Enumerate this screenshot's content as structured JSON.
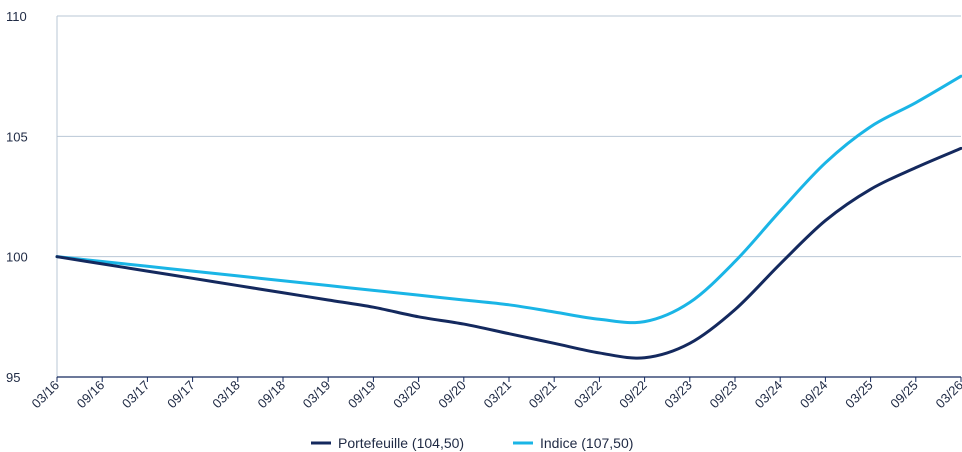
{
  "chart_data": {
    "type": "line",
    "x": [
      "03/16",
      "09/16",
      "03/17",
      "09/17",
      "03/18",
      "09/18",
      "03/19",
      "09/19",
      "03/20",
      "09/20",
      "03/21",
      "09/21",
      "03/22",
      "09/22",
      "03/23",
      "09/23",
      "03/24",
      "09/24",
      "03/25",
      "09/25",
      "03/26"
    ],
    "ylim": [
      95,
      110
    ],
    "yticks": [
      95,
      100,
      105,
      110
    ],
    "grid": "horizontal",
    "legend_position": "bottom",
    "series": [
      {
        "name": "Portefeuille (104,50)",
        "color": "#14295e",
        "values": [
          100.0,
          99.7,
          99.4,
          99.1,
          98.8,
          98.5,
          98.2,
          97.9,
          97.5,
          97.2,
          96.8,
          96.4,
          96.0,
          95.8,
          96.4,
          97.8,
          99.7,
          101.5,
          102.8,
          103.7,
          104.5
        ]
      },
      {
        "name": "Indice (107,50)",
        "color": "#1ab5e6",
        "values": [
          100.0,
          99.8,
          99.6,
          99.4,
          99.2,
          99.0,
          98.8,
          98.6,
          98.4,
          98.2,
          98.0,
          97.7,
          97.4,
          97.3,
          98.1,
          99.8,
          101.9,
          103.9,
          105.4,
          106.4,
          107.5
        ]
      }
    ]
  }
}
